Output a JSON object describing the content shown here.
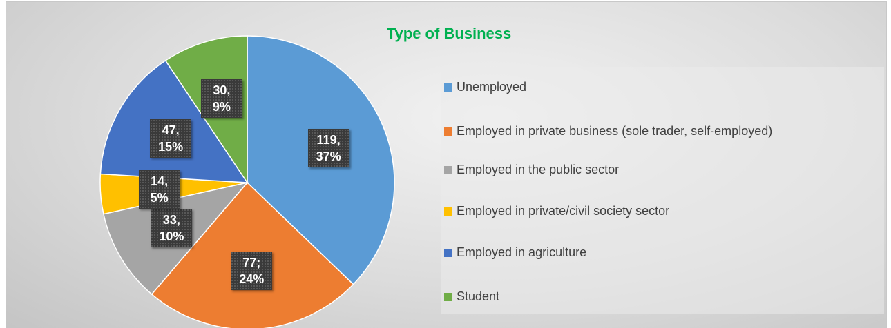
{
  "chart_data": {
    "type": "pie",
    "title": "Type of Business",
    "categories": [
      "Unemployed",
      "Employed in private business (sole trader, self-employed)",
      "Employed in the public sector",
      "Employed in private/civil society sector",
      "Employed in agriculture",
      "Student"
    ],
    "values": [
      119,
      77,
      33,
      14,
      47,
      30
    ],
    "value_labels": [
      "119, 37%",
      "77; 24%",
      "33, 10%",
      "14, 5%",
      "47, 15%",
      "30, 9%"
    ],
    "colors": [
      "#5b9bd5",
      "#ed7d31",
      "#a5a5a5",
      "#ffc000",
      "#4472c4",
      "#70ad47"
    ],
    "legend": "right"
  }
}
